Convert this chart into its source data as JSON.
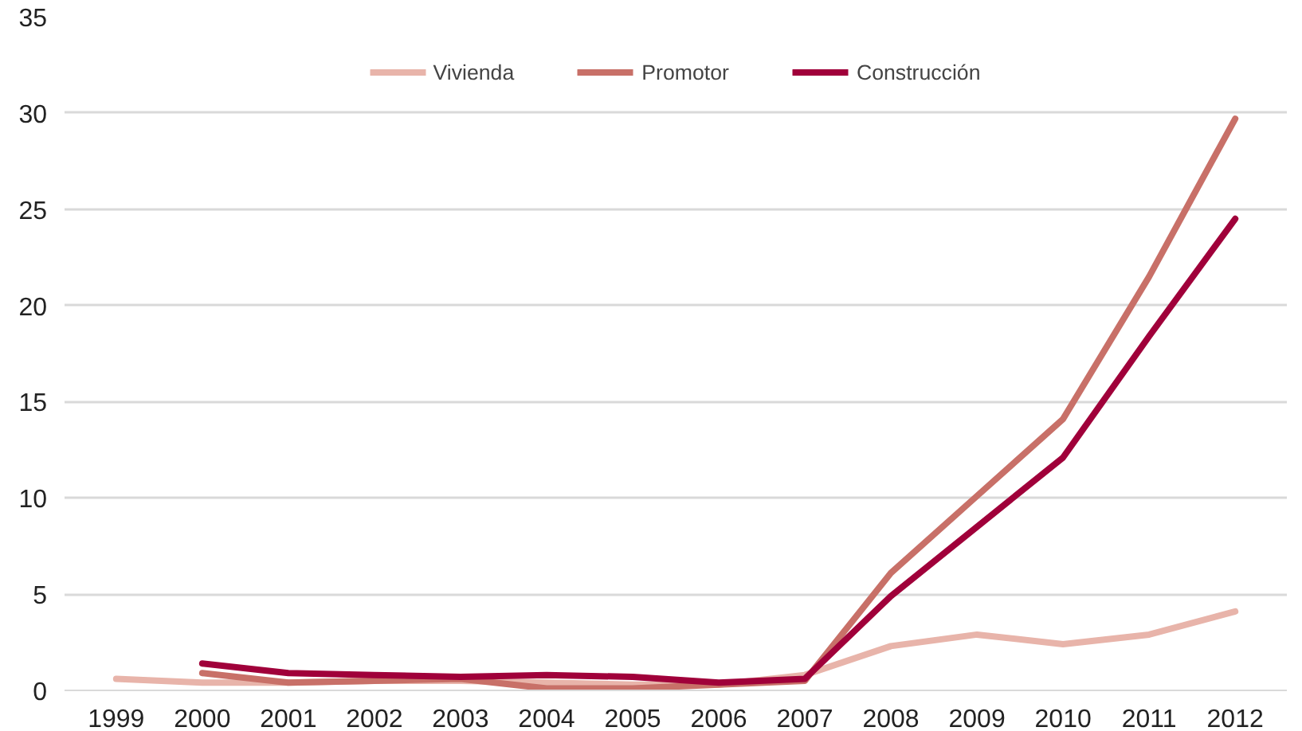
{
  "chart_data": {
    "type": "line",
    "categories": [
      "1999",
      "2000",
      "2001",
      "2002",
      "2003",
      "2004",
      "2005",
      "2006",
      "2007",
      "2008",
      "2009",
      "2010",
      "2011",
      "2012"
    ],
    "series": [
      {
        "name": "Vivienda",
        "color": "#e8b4aa",
        "values": [
          0.6,
          0.4,
          0.4,
          0.5,
          0.5,
          0.4,
          0.3,
          0.3,
          0.8,
          2.3,
          2.9,
          2.4,
          2.9,
          4.1
        ]
      },
      {
        "name": "Promotor",
        "color": "#c87068",
        "values": [
          null,
          0.9,
          0.4,
          0.5,
          0.6,
          0.1,
          0.1,
          0.3,
          0.5,
          6.1,
          10.1,
          14.1,
          21.5,
          29.7
        ]
      },
      {
        "name": "Construcción",
        "color": "#a0003a",
        "values": [
          null,
          1.4,
          0.9,
          0.8,
          0.7,
          0.8,
          0.7,
          0.4,
          0.6,
          4.9,
          8.5,
          12.1,
          18.4,
          24.5
        ]
      }
    ],
    "ylim": [
      0,
      35
    ],
    "yticks": [
      0,
      5,
      10,
      15,
      20,
      25,
      30,
      35
    ],
    "grid": "y",
    "legend": "top",
    "marker": "none",
    "line_style": "solid"
  }
}
